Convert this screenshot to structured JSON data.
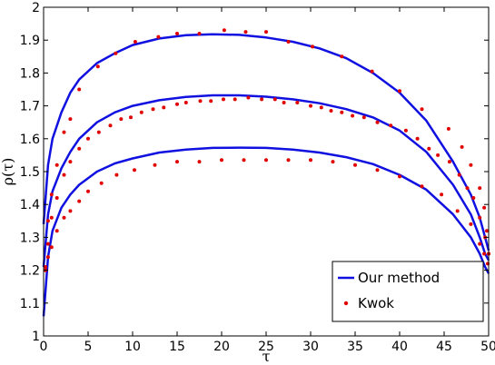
{
  "chart_data": {
    "type": "line",
    "xlabel": "τ",
    "ylabel": "ρ(τ)",
    "xlim": [
      0,
      50
    ],
    "ylim": [
      1,
      2
    ],
    "xticks": [
      0,
      5,
      10,
      15,
      20,
      25,
      30,
      35,
      40,
      45,
      50
    ],
    "yticks": [
      1,
      1.1,
      1.2,
      1.3,
      1.4,
      1.5,
      1.6,
      1.7,
      1.8,
      1.9,
      2
    ],
    "grid": false,
    "legend_placement": "bottom-right",
    "legend": [
      "Our method",
      "Kwok"
    ],
    "colors": {
      "line": "#1010e0",
      "points": "#e00000"
    },
    "series": [
      {
        "name": "Our method",
        "style": "line",
        "curves": [
          [
            [
              0,
              1.34
            ],
            [
              0.5,
              1.52
            ],
            [
              1,
              1.6
            ],
            [
              2,
              1.68
            ],
            [
              3,
              1.74
            ],
            [
              4,
              1.78
            ],
            [
              6,
              1.83
            ],
            [
              8,
              1.86
            ],
            [
              10,
              1.885
            ],
            [
              13,
              1.905
            ],
            [
              16,
              1.915
            ],
            [
              19,
              1.918
            ],
            [
              22,
              1.916
            ],
            [
              25,
              1.908
            ],
            [
              28,
              1.895
            ],
            [
              31,
              1.875
            ],
            [
              34,
              1.845
            ],
            [
              37,
              1.8
            ],
            [
              40,
              1.74
            ],
            [
              43,
              1.655
            ],
            [
              46,
              1.53
            ],
            [
              48,
              1.43
            ],
            [
              49,
              1.36
            ],
            [
              49.6,
              1.3
            ],
            [
              50,
              1.26
            ]
          ],
          [
            [
              0,
              1.21
            ],
            [
              0.5,
              1.37
            ],
            [
              1,
              1.44
            ],
            [
              2,
              1.51
            ],
            [
              3,
              1.56
            ],
            [
              4,
              1.6
            ],
            [
              6,
              1.65
            ],
            [
              8,
              1.68
            ],
            [
              10,
              1.7
            ],
            [
              13,
              1.717
            ],
            [
              16,
              1.727
            ],
            [
              19,
              1.732
            ],
            [
              22,
              1.732
            ],
            [
              25,
              1.728
            ],
            [
              28,
              1.72
            ],
            [
              31,
              1.708
            ],
            [
              34,
              1.69
            ],
            [
              37,
              1.665
            ],
            [
              40,
              1.625
            ],
            [
              43,
              1.56
            ],
            [
              46,
              1.46
            ],
            [
              48,
              1.37
            ],
            [
              49,
              1.3
            ],
            [
              49.6,
              1.25
            ],
            [
              50,
              1.23
            ]
          ],
          [
            [
              0,
              1.06
            ],
            [
              0.5,
              1.24
            ],
            [
              1,
              1.32
            ],
            [
              2,
              1.39
            ],
            [
              3,
              1.43
            ],
            [
              4,
              1.46
            ],
            [
              6,
              1.5
            ],
            [
              8,
              1.525
            ],
            [
              10,
              1.54
            ],
            [
              13,
              1.558
            ],
            [
              16,
              1.567
            ],
            [
              19,
              1.572
            ],
            [
              22,
              1.573
            ],
            [
              25,
              1.572
            ],
            [
              28,
              1.567
            ],
            [
              31,
              1.558
            ],
            [
              34,
              1.544
            ],
            [
              37,
              1.523
            ],
            [
              40,
              1.49
            ],
            [
              43,
              1.445
            ],
            [
              46,
              1.37
            ],
            [
              48,
              1.3
            ],
            [
              49,
              1.25
            ],
            [
              49.6,
              1.21
            ],
            [
              50,
              1.19
            ]
          ]
        ]
      },
      {
        "name": "Kwok",
        "style": "points",
        "curves": [
          [
            [
              0.2,
              1.21
            ],
            [
              0.5,
              1.35
            ],
            [
              0.9,
              1.43
            ],
            [
              1.5,
              1.52
            ],
            [
              2.3,
              1.62
            ],
            [
              3.0,
              1.66
            ],
            [
              4.0,
              1.75
            ],
            [
              6.1,
              1.82
            ],
            [
              8.1,
              1.86
            ],
            [
              10.3,
              1.895
            ],
            [
              12.9,
              1.91
            ],
            [
              15.0,
              1.92
            ],
            [
              17.5,
              1.92
            ],
            [
              20.3,
              1.93
            ],
            [
              22.7,
              1.925
            ],
            [
              25.0,
              1.925
            ],
            [
              27.5,
              1.895
            ],
            [
              30.2,
              1.88
            ],
            [
              33.5,
              1.85
            ],
            [
              36.9,
              1.805
            ],
            [
              40.0,
              1.745
            ],
            [
              42.5,
              1.69
            ],
            [
              45.5,
              1.63
            ],
            [
              47.0,
              1.575
            ],
            [
              48.0,
              1.52
            ],
            [
              49.0,
              1.45
            ],
            [
              49.5,
              1.39
            ],
            [
              49.8,
              1.32
            ],
            [
              50.0,
              1.25
            ]
          ],
          [
            [
              0.2,
              1.2
            ],
            [
              0.5,
              1.28
            ],
            [
              0.9,
              1.36
            ],
            [
              1.5,
              1.42
            ],
            [
              2.3,
              1.49
            ],
            [
              3.0,
              1.53
            ],
            [
              4.0,
              1.57
            ],
            [
              5.0,
              1.6
            ],
            [
              6.2,
              1.62
            ],
            [
              7.5,
              1.64
            ],
            [
              8.7,
              1.66
            ],
            [
              9.8,
              1.665
            ],
            [
              11.0,
              1.68
            ],
            [
              12.3,
              1.69
            ],
            [
              13.5,
              1.695
            ],
            [
              15.0,
              1.705
            ],
            [
              16.0,
              1.71
            ],
            [
              17.6,
              1.715
            ],
            [
              18.8,
              1.715
            ],
            [
              20.2,
              1.72
            ],
            [
              21.5,
              1.72
            ],
            [
              23.0,
              1.725
            ],
            [
              24.5,
              1.72
            ],
            [
              26.0,
              1.72
            ],
            [
              27.0,
              1.71
            ],
            [
              28.5,
              1.71
            ],
            [
              30.0,
              1.7
            ],
            [
              31.2,
              1.695
            ],
            [
              32.3,
              1.685
            ],
            [
              33.5,
              1.68
            ],
            [
              34.7,
              1.67
            ],
            [
              36.0,
              1.665
            ],
            [
              37.5,
              1.65
            ],
            [
              39.0,
              1.64
            ],
            [
              40.7,
              1.625
            ],
            [
              42.0,
              1.6
            ],
            [
              43.3,
              1.57
            ],
            [
              44.3,
              1.55
            ],
            [
              45.6,
              1.53
            ],
            [
              46.7,
              1.49
            ],
            [
              47.6,
              1.45
            ],
            [
              48.3,
              1.42
            ],
            [
              49.0,
              1.36
            ],
            [
              49.6,
              1.3
            ],
            [
              50.0,
              1.25
            ]
          ],
          [
            [
              0.2,
              1.2
            ],
            [
              0.5,
              1.24
            ],
            [
              0.9,
              1.27
            ],
            [
              1.5,
              1.32
            ],
            [
              2.3,
              1.36
            ],
            [
              3.0,
              1.38
            ],
            [
              4.0,
              1.41
            ],
            [
              5.0,
              1.44
            ],
            [
              6.5,
              1.465
            ],
            [
              8.2,
              1.49
            ],
            [
              10.2,
              1.505
            ],
            [
              12.5,
              1.52
            ],
            [
              15.0,
              1.53
            ],
            [
              17.5,
              1.53
            ],
            [
              20.0,
              1.535
            ],
            [
              22.5,
              1.535
            ],
            [
              25.0,
              1.535
            ],
            [
              27.5,
              1.535
            ],
            [
              30.0,
              1.535
            ],
            [
              32.5,
              1.53
            ],
            [
              35.0,
              1.52
            ],
            [
              37.5,
              1.505
            ],
            [
              40.0,
              1.485
            ],
            [
              42.5,
              1.455
            ],
            [
              44.7,
              1.43
            ],
            [
              46.5,
              1.38
            ],
            [
              48.0,
              1.34
            ],
            [
              49.0,
              1.28
            ],
            [
              49.5,
              1.25
            ],
            [
              49.9,
              1.22
            ]
          ]
        ]
      }
    ]
  }
}
